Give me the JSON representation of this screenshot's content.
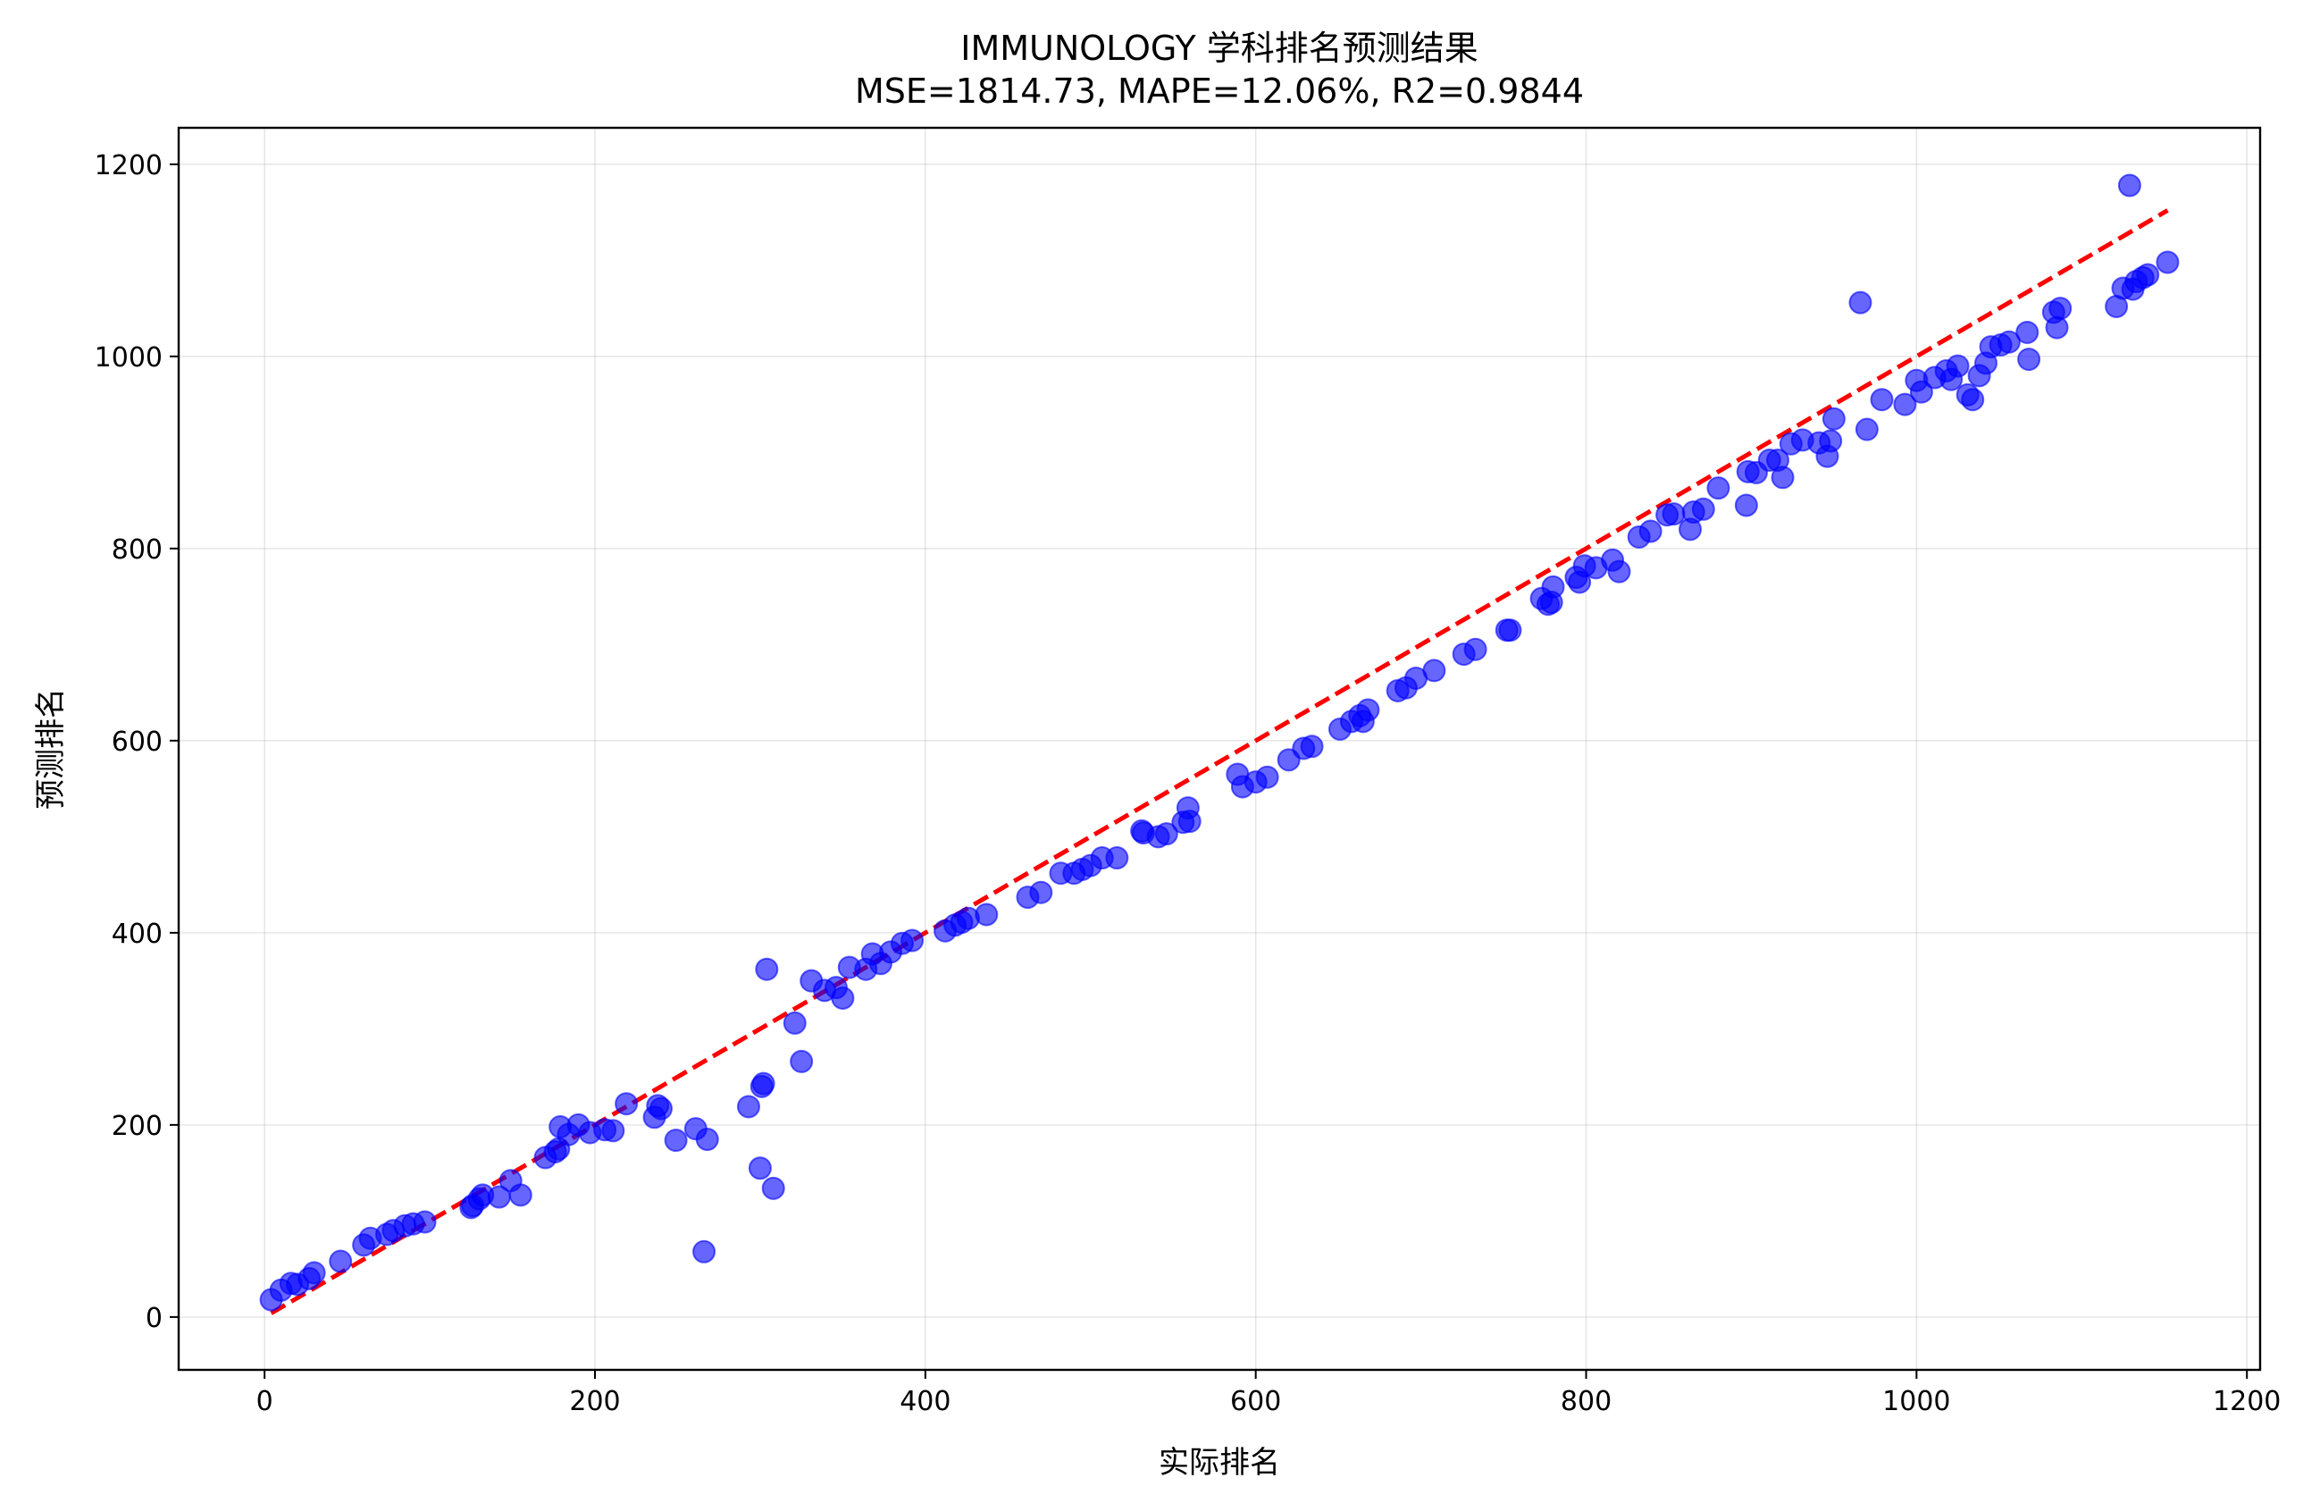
{
  "chart_data": {
    "type": "scatter",
    "title": "IMMUNOLOGY 学科排名预测结果",
    "subtitle": "MSE=1814.73, MAPE=12.06%, R2=0.9844",
    "xlabel": "实际排名",
    "ylabel": "预测排名",
    "xlim": [
      -52,
      1208
    ],
    "ylim": [
      -55,
      1238
    ],
    "x_ticks": [
      0,
      200,
      400,
      600,
      800,
      1000,
      1200
    ],
    "y_ticks": [
      0,
      200,
      400,
      600,
      800,
      1000,
      1200
    ],
    "x_tick_labels": [
      "0",
      "200",
      "400",
      "600",
      "800",
      "1000",
      "1200"
    ],
    "y_tick_labels": [
      "0",
      "200",
      "400",
      "600",
      "800",
      "1000",
      "1200"
    ],
    "grid": true,
    "point_color": "#0000ff",
    "point_opacity": 0.6,
    "line_color": "#ff0000",
    "reference_line": {
      "style": "dashed",
      "x": [
        4,
        1152
      ],
      "y": [
        4,
        1152
      ]
    },
    "points": [
      [
        4,
        18
      ],
      [
        10,
        28
      ],
      [
        16,
        35
      ],
      [
        20,
        34
      ],
      [
        27,
        40
      ],
      [
        30,
        46
      ],
      [
        46,
        58
      ],
      [
        60,
        75
      ],
      [
        64,
        82
      ],
      [
        74,
        86
      ],
      [
        78,
        90
      ],
      [
        85,
        95
      ],
      [
        90,
        97
      ],
      [
        97,
        99
      ],
      [
        125,
        114
      ],
      [
        126,
        116
      ],
      [
        130,
        123
      ],
      [
        132,
        127
      ],
      [
        142,
        125
      ],
      [
        149,
        142
      ],
      [
        155,
        127
      ],
      [
        170,
        166
      ],
      [
        176,
        172
      ],
      [
        178,
        175
      ],
      [
        179,
        198
      ],
      [
        184,
        190
      ],
      [
        190,
        200
      ],
      [
        197,
        192
      ],
      [
        206,
        195
      ],
      [
        211,
        194
      ],
      [
        219,
        222
      ],
      [
        236,
        208
      ],
      [
        238,
        220
      ],
      [
        240,
        217
      ],
      [
        249,
        184
      ],
      [
        261,
        196
      ],
      [
        266,
        68
      ],
      [
        268,
        185
      ],
      [
        293,
        219
      ],
      [
        300,
        155
      ],
      [
        301,
        240
      ],
      [
        302,
        243
      ],
      [
        304,
        362
      ],
      [
        308,
        134
      ],
      [
        321,
        306
      ],
      [
        325,
        266
      ],
      [
        331,
        350
      ],
      [
        339,
        340
      ],
      [
        346,
        343
      ],
      [
        350,
        332
      ],
      [
        354,
        364
      ],
      [
        364,
        362
      ],
      [
        368,
        378
      ],
      [
        373,
        368
      ],
      [
        379,
        380
      ],
      [
        386,
        389
      ],
      [
        392,
        392
      ],
      [
        412,
        402
      ],
      [
        418,
        408
      ],
      [
        422,
        411
      ],
      [
        426,
        415
      ],
      [
        437,
        419
      ],
      [
        462,
        437
      ],
      [
        470,
        442
      ],
      [
        482,
        462
      ],
      [
        490,
        462
      ],
      [
        495,
        466
      ],
      [
        500,
        470
      ],
      [
        507,
        478
      ],
      [
        516,
        478
      ],
      [
        531,
        506
      ],
      [
        532,
        504
      ],
      [
        541,
        500
      ],
      [
        546,
        503
      ],
      [
        556,
        515
      ],
      [
        559,
        530
      ],
      [
        560,
        516
      ],
      [
        589,
        565
      ],
      [
        592,
        552
      ],
      [
        600,
        557
      ],
      [
        607,
        562
      ],
      [
        620,
        580
      ],
      [
        629,
        592
      ],
      [
        634,
        594
      ],
      [
        651,
        612
      ],
      [
        658,
        620
      ],
      [
        663,
        626
      ],
      [
        665,
        620
      ],
      [
        668,
        632
      ],
      [
        686,
        652
      ],
      [
        691,
        655
      ],
      [
        697,
        665
      ],
      [
        708,
        673
      ],
      [
        726,
        690
      ],
      [
        733,
        695
      ],
      [
        752,
        715
      ],
      [
        754,
        715
      ],
      [
        773,
        748
      ],
      [
        777,
        742
      ],
      [
        779,
        744
      ],
      [
        780,
        760
      ],
      [
        794,
        770
      ],
      [
        796,
        765
      ],
      [
        799,
        782
      ],
      [
        806,
        780
      ],
      [
        816,
        788
      ],
      [
        820,
        776
      ],
      [
        832,
        812
      ],
      [
        839,
        818
      ],
      [
        849,
        835
      ],
      [
        853,
        836
      ],
      [
        863,
        820
      ],
      [
        865,
        838
      ],
      [
        871,
        841
      ],
      [
        880,
        863
      ],
      [
        897,
        845
      ],
      [
        898,
        880
      ],
      [
        903,
        879
      ],
      [
        911,
        892
      ],
      [
        916,
        892
      ],
      [
        919,
        874
      ],
      [
        924,
        909
      ],
      [
        931,
        913
      ],
      [
        941,
        910
      ],
      [
        946,
        896
      ],
      [
        948,
        912
      ],
      [
        950,
        935
      ],
      [
        966,
        1056
      ],
      [
        970,
        924
      ],
      [
        979,
        955
      ],
      [
        993,
        950
      ],
      [
        1000,
        975
      ],
      [
        1003,
        963
      ],
      [
        1011,
        978
      ],
      [
        1018,
        985
      ],
      [
        1021,
        976
      ],
      [
        1025,
        990
      ],
      [
        1031,
        960
      ],
      [
        1034,
        955
      ],
      [
        1038,
        980
      ],
      [
        1042,
        993
      ],
      [
        1045,
        1010
      ],
      [
        1051,
        1012
      ],
      [
        1056,
        1015
      ],
      [
        1067,
        1025
      ],
      [
        1068,
        997
      ],
      [
        1083,
        1046
      ],
      [
        1085,
        1030
      ],
      [
        1087,
        1050
      ],
      [
        1121,
        1052
      ],
      [
        1125,
        1071
      ],
      [
        1129,
        1178
      ],
      [
        1131,
        1070
      ],
      [
        1133,
        1078
      ],
      [
        1137,
        1082
      ],
      [
        1140,
        1085
      ],
      [
        1152,
        1098
      ]
    ]
  }
}
